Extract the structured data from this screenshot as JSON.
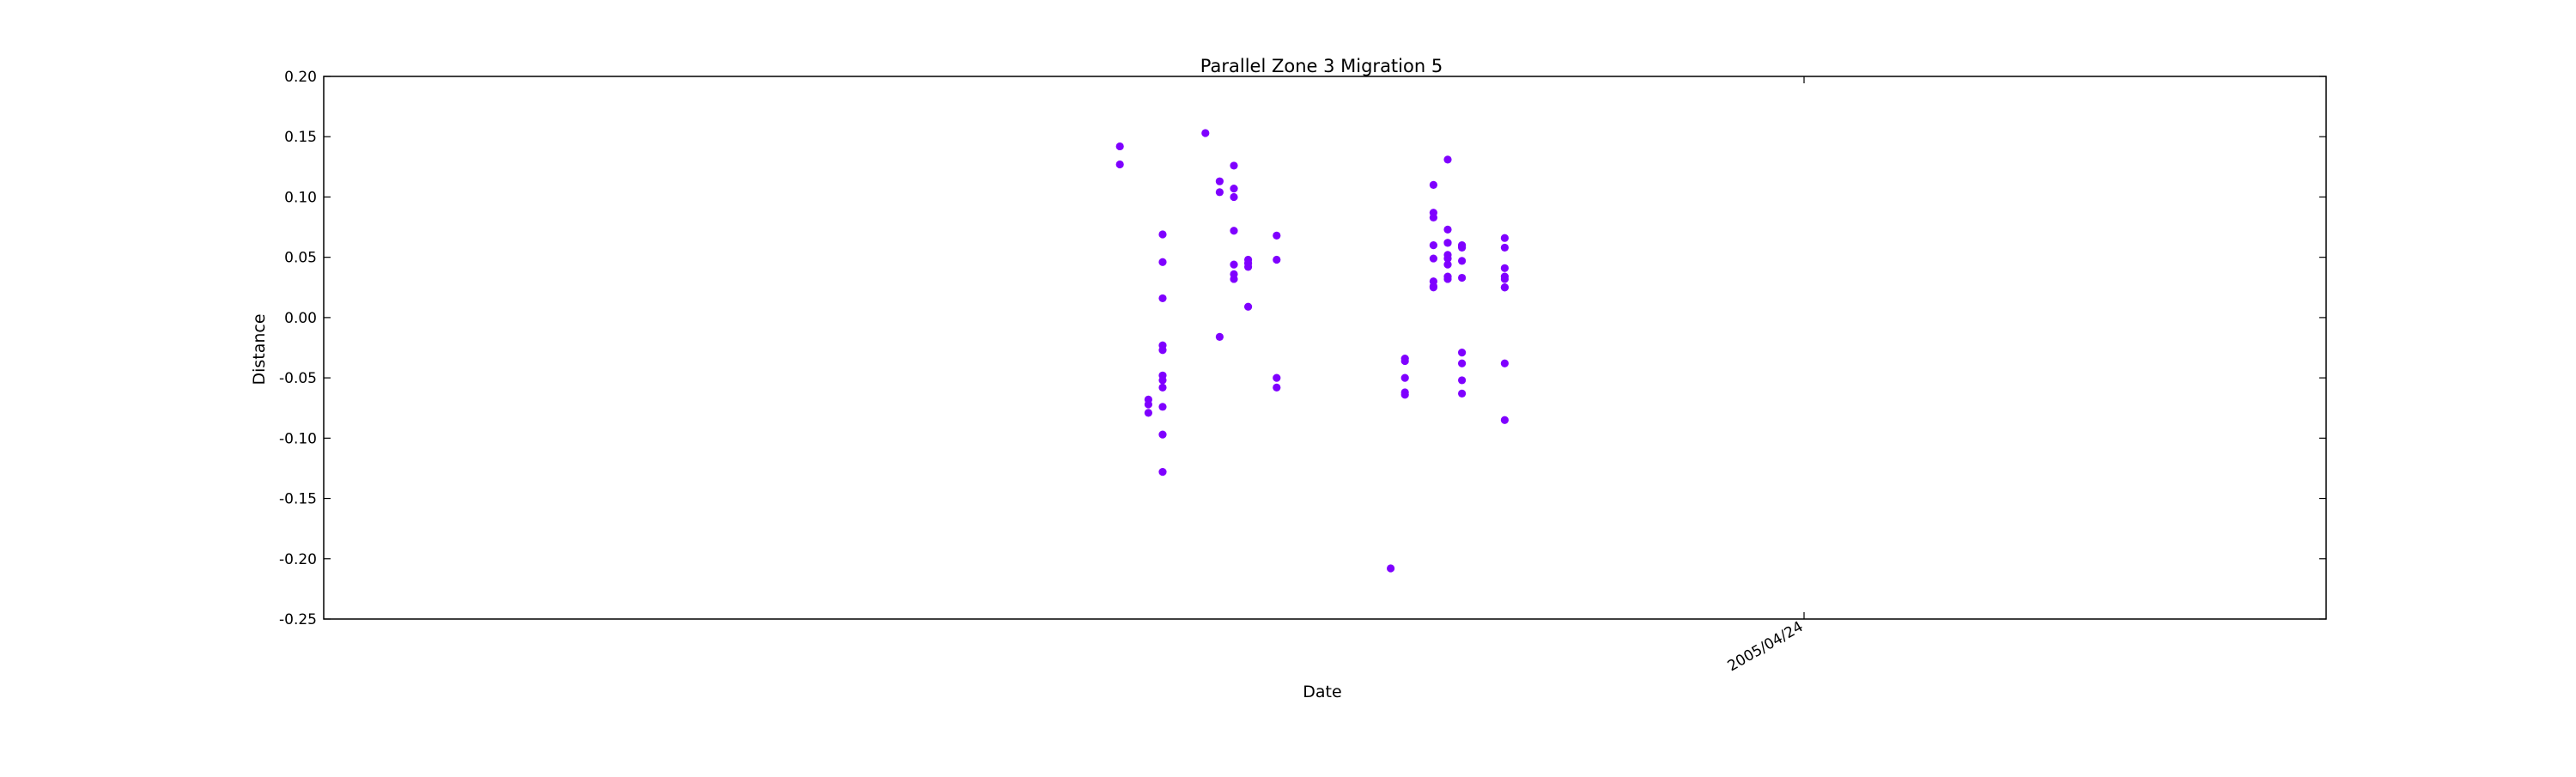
{
  "chart_data": {
    "type": "scatter",
    "title": "Parallel Zone 3 Migration 5",
    "xlabel": "Date",
    "ylabel": "Distance",
    "ylim": [
      -0.25,
      0.2
    ],
    "yticks": [
      "0.20",
      "0.15",
      "0.10",
      "0.05",
      "0.00",
      "-0.05",
      "-0.10",
      "-0.15",
      "-0.20",
      "-0.25"
    ],
    "xticks": [
      "2005/04/24"
    ],
    "grid": false,
    "marker_color": "#7f00ff",
    "series": [
      {
        "points": [
          {
            "date": "2005/03/07",
            "distance": 0.127
          },
          {
            "date": "2005/03/07",
            "distance": 0.142
          },
          {
            "date": "2005/03/09",
            "distance": -0.068
          },
          {
            "date": "2005/03/09",
            "distance": -0.072
          },
          {
            "date": "2005/03/09",
            "distance": -0.079
          },
          {
            "date": "2005/03/10",
            "distance": 0.069
          },
          {
            "date": "2005/03/10",
            "distance": -0.048
          },
          {
            "date": "2005/03/10",
            "distance": -0.052
          },
          {
            "date": "2005/03/10",
            "distance": 0.046
          },
          {
            "date": "2005/03/10",
            "distance": 0.016
          },
          {
            "date": "2005/03/10",
            "distance": -0.097
          },
          {
            "date": "2005/03/10",
            "distance": -0.128
          },
          {
            "date": "2005/03/10",
            "distance": -0.023
          },
          {
            "date": "2005/03/10",
            "distance": -0.027
          },
          {
            "date": "2005/03/10",
            "distance": -0.058
          },
          {
            "date": "2005/03/10",
            "distance": -0.074
          },
          {
            "date": "2005/03/13",
            "distance": 0.153
          },
          {
            "date": "2005/03/14",
            "distance": -0.016
          },
          {
            "date": "2005/03/14",
            "distance": 0.113
          },
          {
            "date": "2005/03/14",
            "distance": 0.104
          },
          {
            "date": "2005/03/15",
            "distance": 0.072
          },
          {
            "date": "2005/03/15",
            "distance": 0.036
          },
          {
            "date": "2005/03/15",
            "distance": 0.126
          },
          {
            "date": "2005/03/15",
            "distance": 0.107
          },
          {
            "date": "2005/03/15",
            "distance": 0.1
          },
          {
            "date": "2005/03/15",
            "distance": 0.044
          },
          {
            "date": "2005/03/15",
            "distance": 0.032
          },
          {
            "date": "2005/03/16",
            "distance": 0.045
          },
          {
            "date": "2005/03/16",
            "distance": 0.048
          },
          {
            "date": "2005/03/16",
            "distance": 0.009
          },
          {
            "date": "2005/03/16",
            "distance": 0.042
          },
          {
            "date": "2005/03/18",
            "distance": 0.068
          },
          {
            "date": "2005/03/18",
            "distance": 0.048
          },
          {
            "date": "2005/03/18",
            "distance": -0.05
          },
          {
            "date": "2005/03/18",
            "distance": -0.058
          },
          {
            "date": "2005/03/26",
            "distance": -0.208
          },
          {
            "date": "2005/03/27",
            "distance": -0.062
          },
          {
            "date": "2005/03/27",
            "distance": -0.064
          },
          {
            "date": "2005/03/27",
            "distance": -0.034
          },
          {
            "date": "2005/03/27",
            "distance": -0.036
          },
          {
            "date": "2005/03/27",
            "distance": -0.05
          },
          {
            "date": "2005/03/29",
            "distance": 0.025
          },
          {
            "date": "2005/03/29",
            "distance": 0.03
          },
          {
            "date": "2005/03/29",
            "distance": 0.087
          },
          {
            "date": "2005/03/29",
            "distance": 0.049
          },
          {
            "date": "2005/03/29",
            "distance": 0.11
          },
          {
            "date": "2005/03/29",
            "distance": 0.083
          },
          {
            "date": "2005/03/29",
            "distance": 0.06
          },
          {
            "date": "2005/03/29",
            "distance": 0.026
          },
          {
            "date": "2005/03/30",
            "distance": 0.032
          },
          {
            "date": "2005/03/30",
            "distance": 0.044
          },
          {
            "date": "2005/03/30",
            "distance": 0.052
          },
          {
            "date": "2005/03/30",
            "distance": 0.062
          },
          {
            "date": "2005/03/30",
            "distance": 0.034
          },
          {
            "date": "2005/03/30",
            "distance": 0.073
          },
          {
            "date": "2005/03/30",
            "distance": 0.062
          },
          {
            "date": "2005/03/30",
            "distance": 0.131
          },
          {
            "date": "2005/03/30",
            "distance": 0.049
          },
          {
            "date": "2005/03/31",
            "distance": 0.06
          },
          {
            "date": "2005/03/31",
            "distance": 0.033
          },
          {
            "date": "2005/03/31",
            "distance": -0.038
          },
          {
            "date": "2005/03/31",
            "distance": -0.052
          },
          {
            "date": "2005/03/31",
            "distance": -0.063
          },
          {
            "date": "2005/03/31",
            "distance": 0.058
          },
          {
            "date": "2005/03/31",
            "distance": 0.047
          },
          {
            "date": "2005/03/31",
            "distance": 0.059
          },
          {
            "date": "2005/03/31",
            "distance": -0.029
          },
          {
            "date": "2005/04/03",
            "distance": -0.085
          },
          {
            "date": "2005/04/03",
            "distance": 0.066
          },
          {
            "date": "2005/04/03",
            "distance": 0.058
          },
          {
            "date": "2005/04/03",
            "distance": 0.041
          },
          {
            "date": "2005/04/03",
            "distance": 0.034
          },
          {
            "date": "2005/04/03",
            "distance": 0.032
          },
          {
            "date": "2005/04/03",
            "distance": 0.025
          },
          {
            "date": "2005/04/03",
            "distance": 0.025
          },
          {
            "date": "2005/04/03",
            "distance": -0.038
          }
        ]
      }
    ]
  }
}
